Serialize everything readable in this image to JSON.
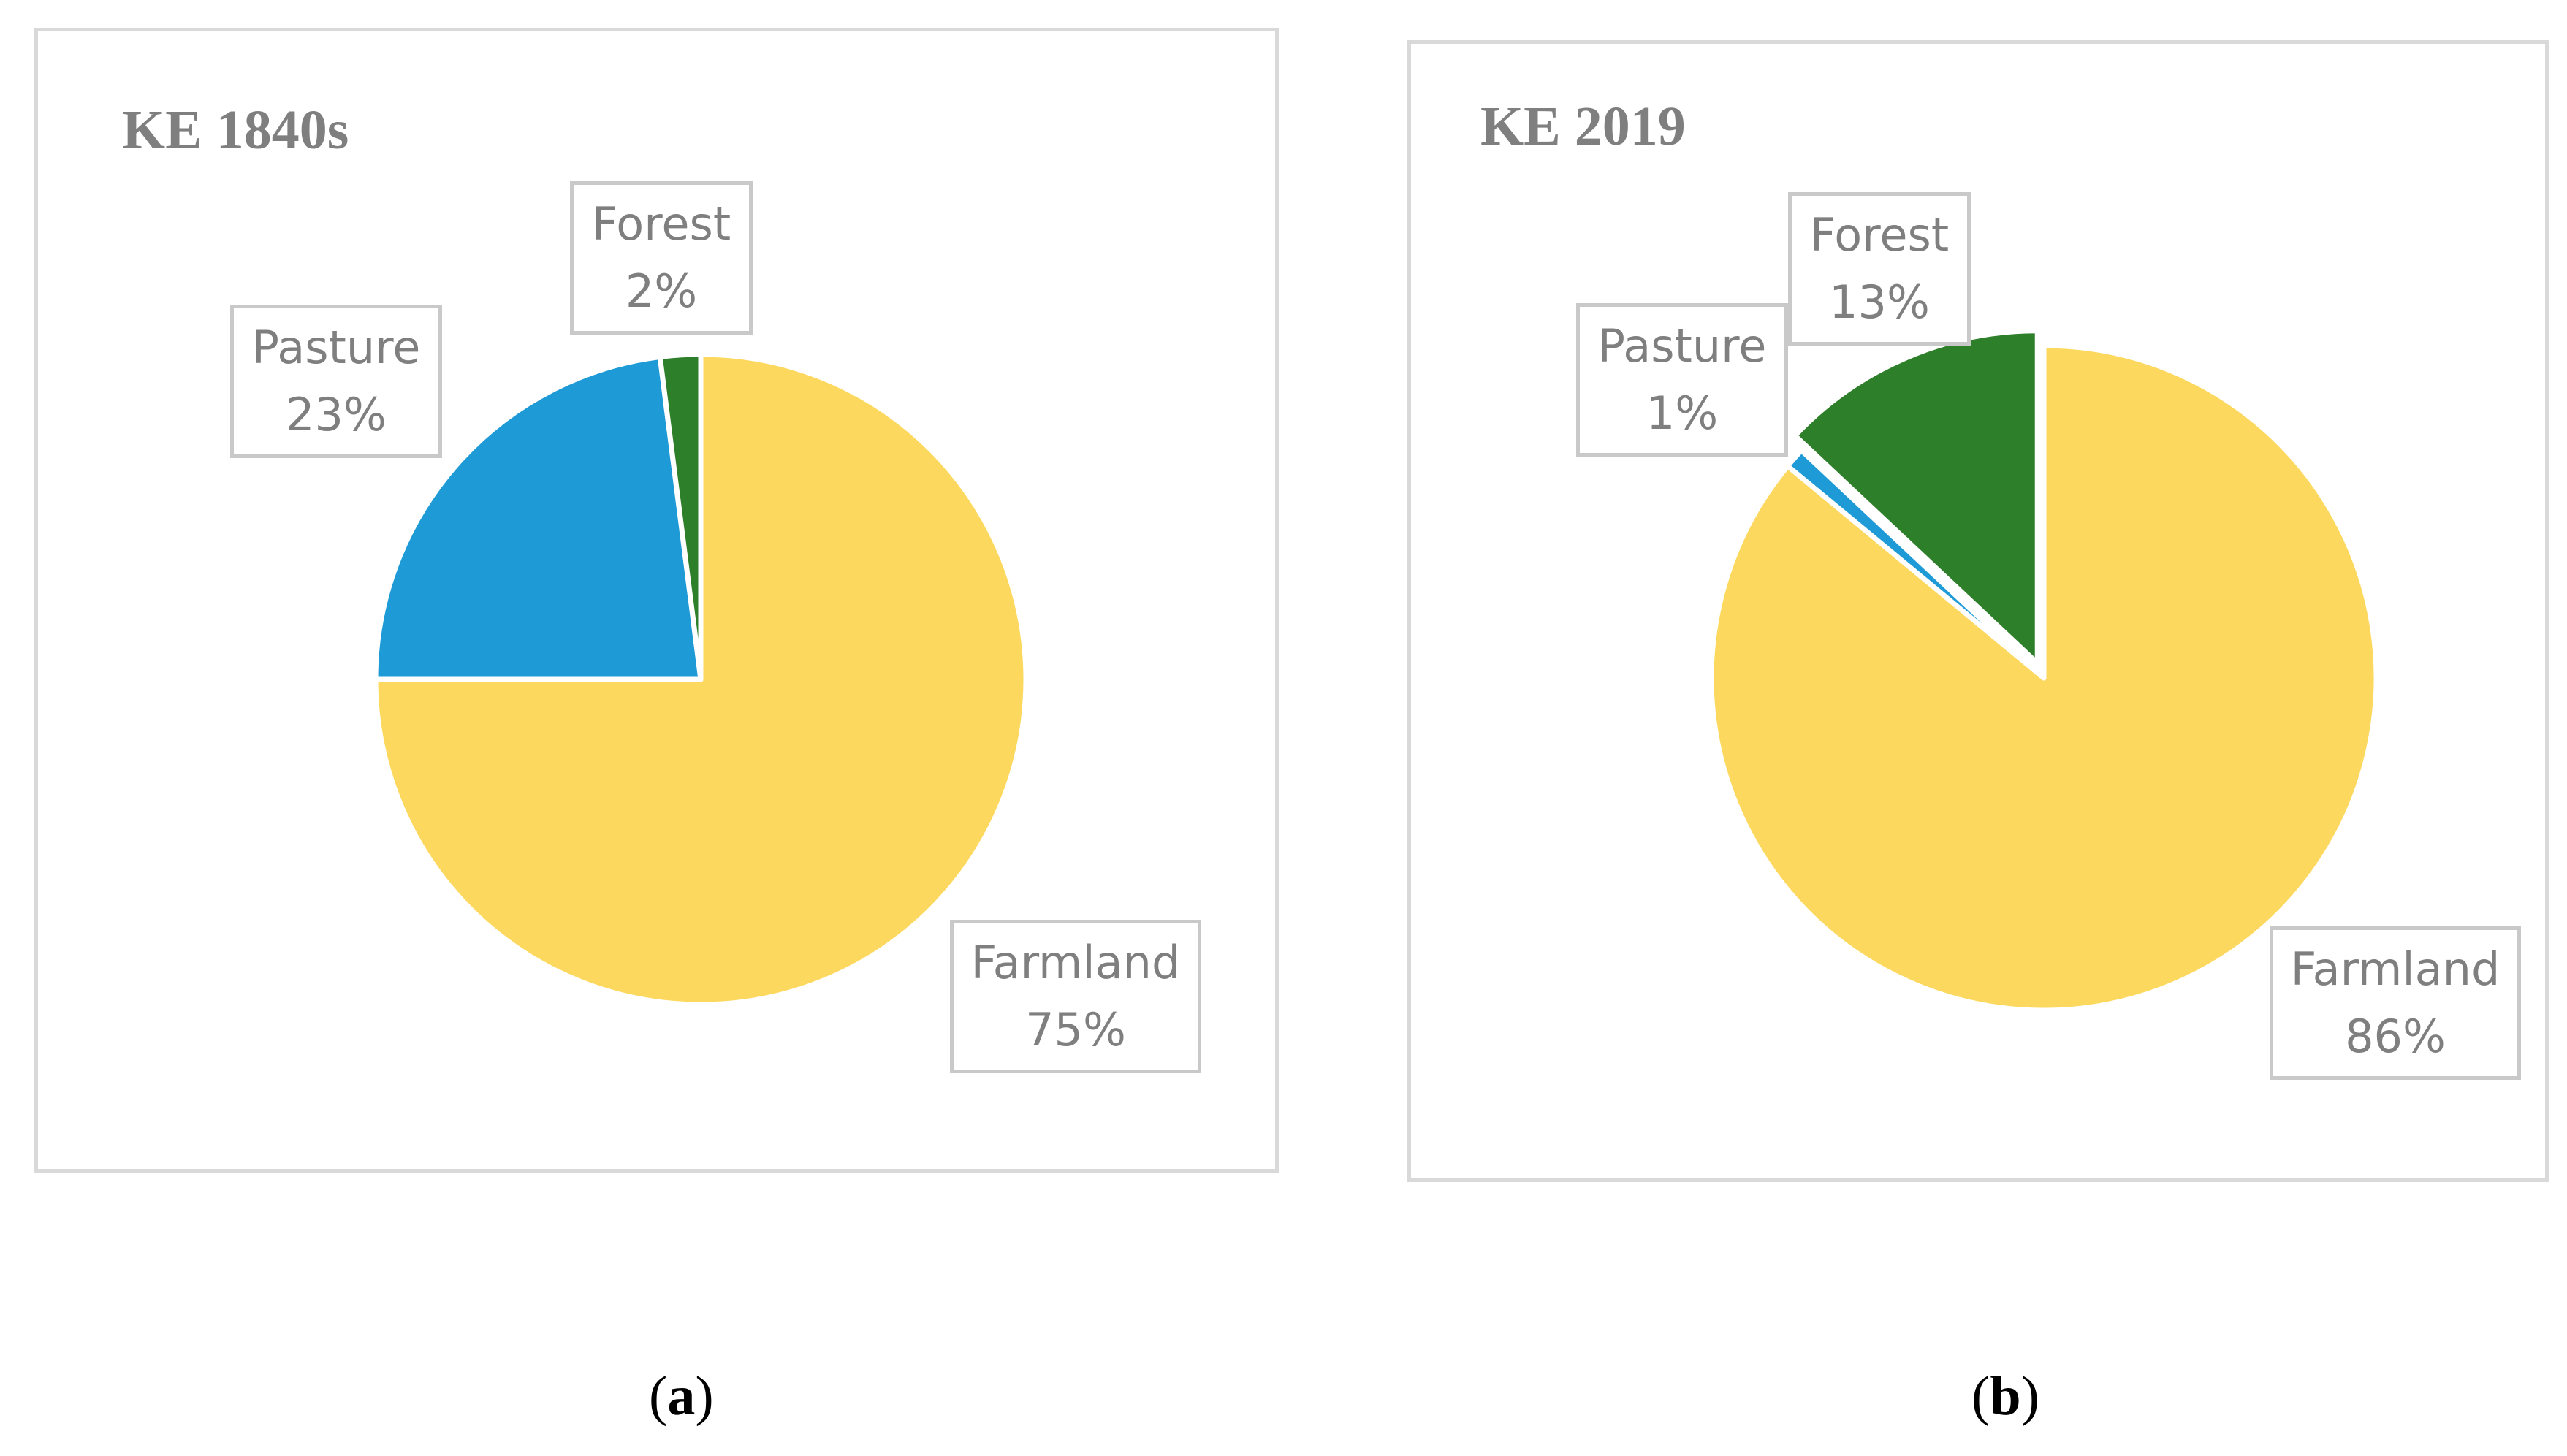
{
  "colors": {
    "Farmland": "#FCD95E",
    "Pasture": "#1E9BD7",
    "Forest": "#2E7F2A",
    "title": "#7F7F7F",
    "border": "#D9D9D9"
  },
  "chart_data": [
    {
      "type": "pie",
      "title": "KE 1840s",
      "sublabel": {
        "open": "(",
        "letter": "a",
        "close": ")"
      },
      "slices": [
        {
          "name": "Farmland",
          "value": 75,
          "pct_label": "75%"
        },
        {
          "name": "Pasture",
          "value": 23,
          "pct_label": "23%"
        },
        {
          "name": "Forest",
          "value": 2,
          "pct_label": "2%"
        }
      ]
    },
    {
      "type": "pie",
      "title": "KE 2019",
      "sublabel": {
        "open": "(",
        "letter": "b",
        "close": ")"
      },
      "slices": [
        {
          "name": "Farmland",
          "value": 86,
          "pct_label": "86%"
        },
        {
          "name": "Pasture",
          "value": 1,
          "pct_label": "1%"
        },
        {
          "name": "Forest",
          "value": 13,
          "pct_label": "13%"
        }
      ]
    }
  ]
}
